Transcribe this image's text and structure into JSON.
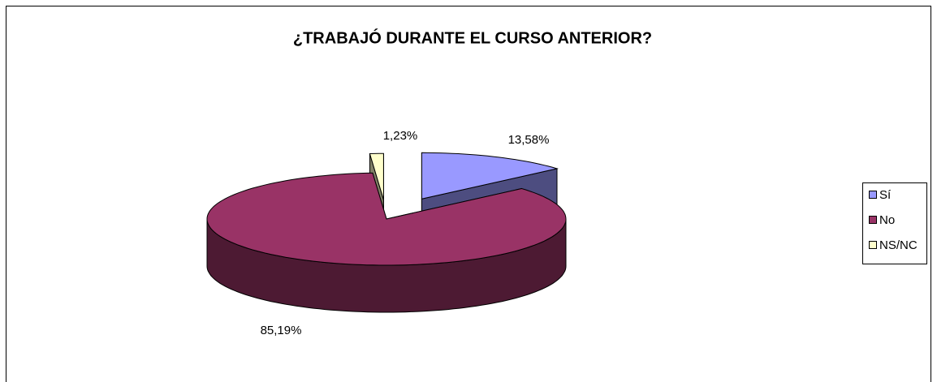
{
  "chart_data": {
    "type": "pie",
    "title": "¿TRABAJÓ DURANTE EL CURSO ANTERIOR?",
    "categories": [
      "Sí",
      "No",
      "NS/NC"
    ],
    "values": [
      13.58,
      85.19,
      1.23
    ],
    "value_labels": [
      "13,58%",
      "85,19%",
      "1,23%"
    ],
    "colors": [
      "#9999FF",
      "#993366",
      "#FFFFCC"
    ],
    "legend": "right"
  }
}
